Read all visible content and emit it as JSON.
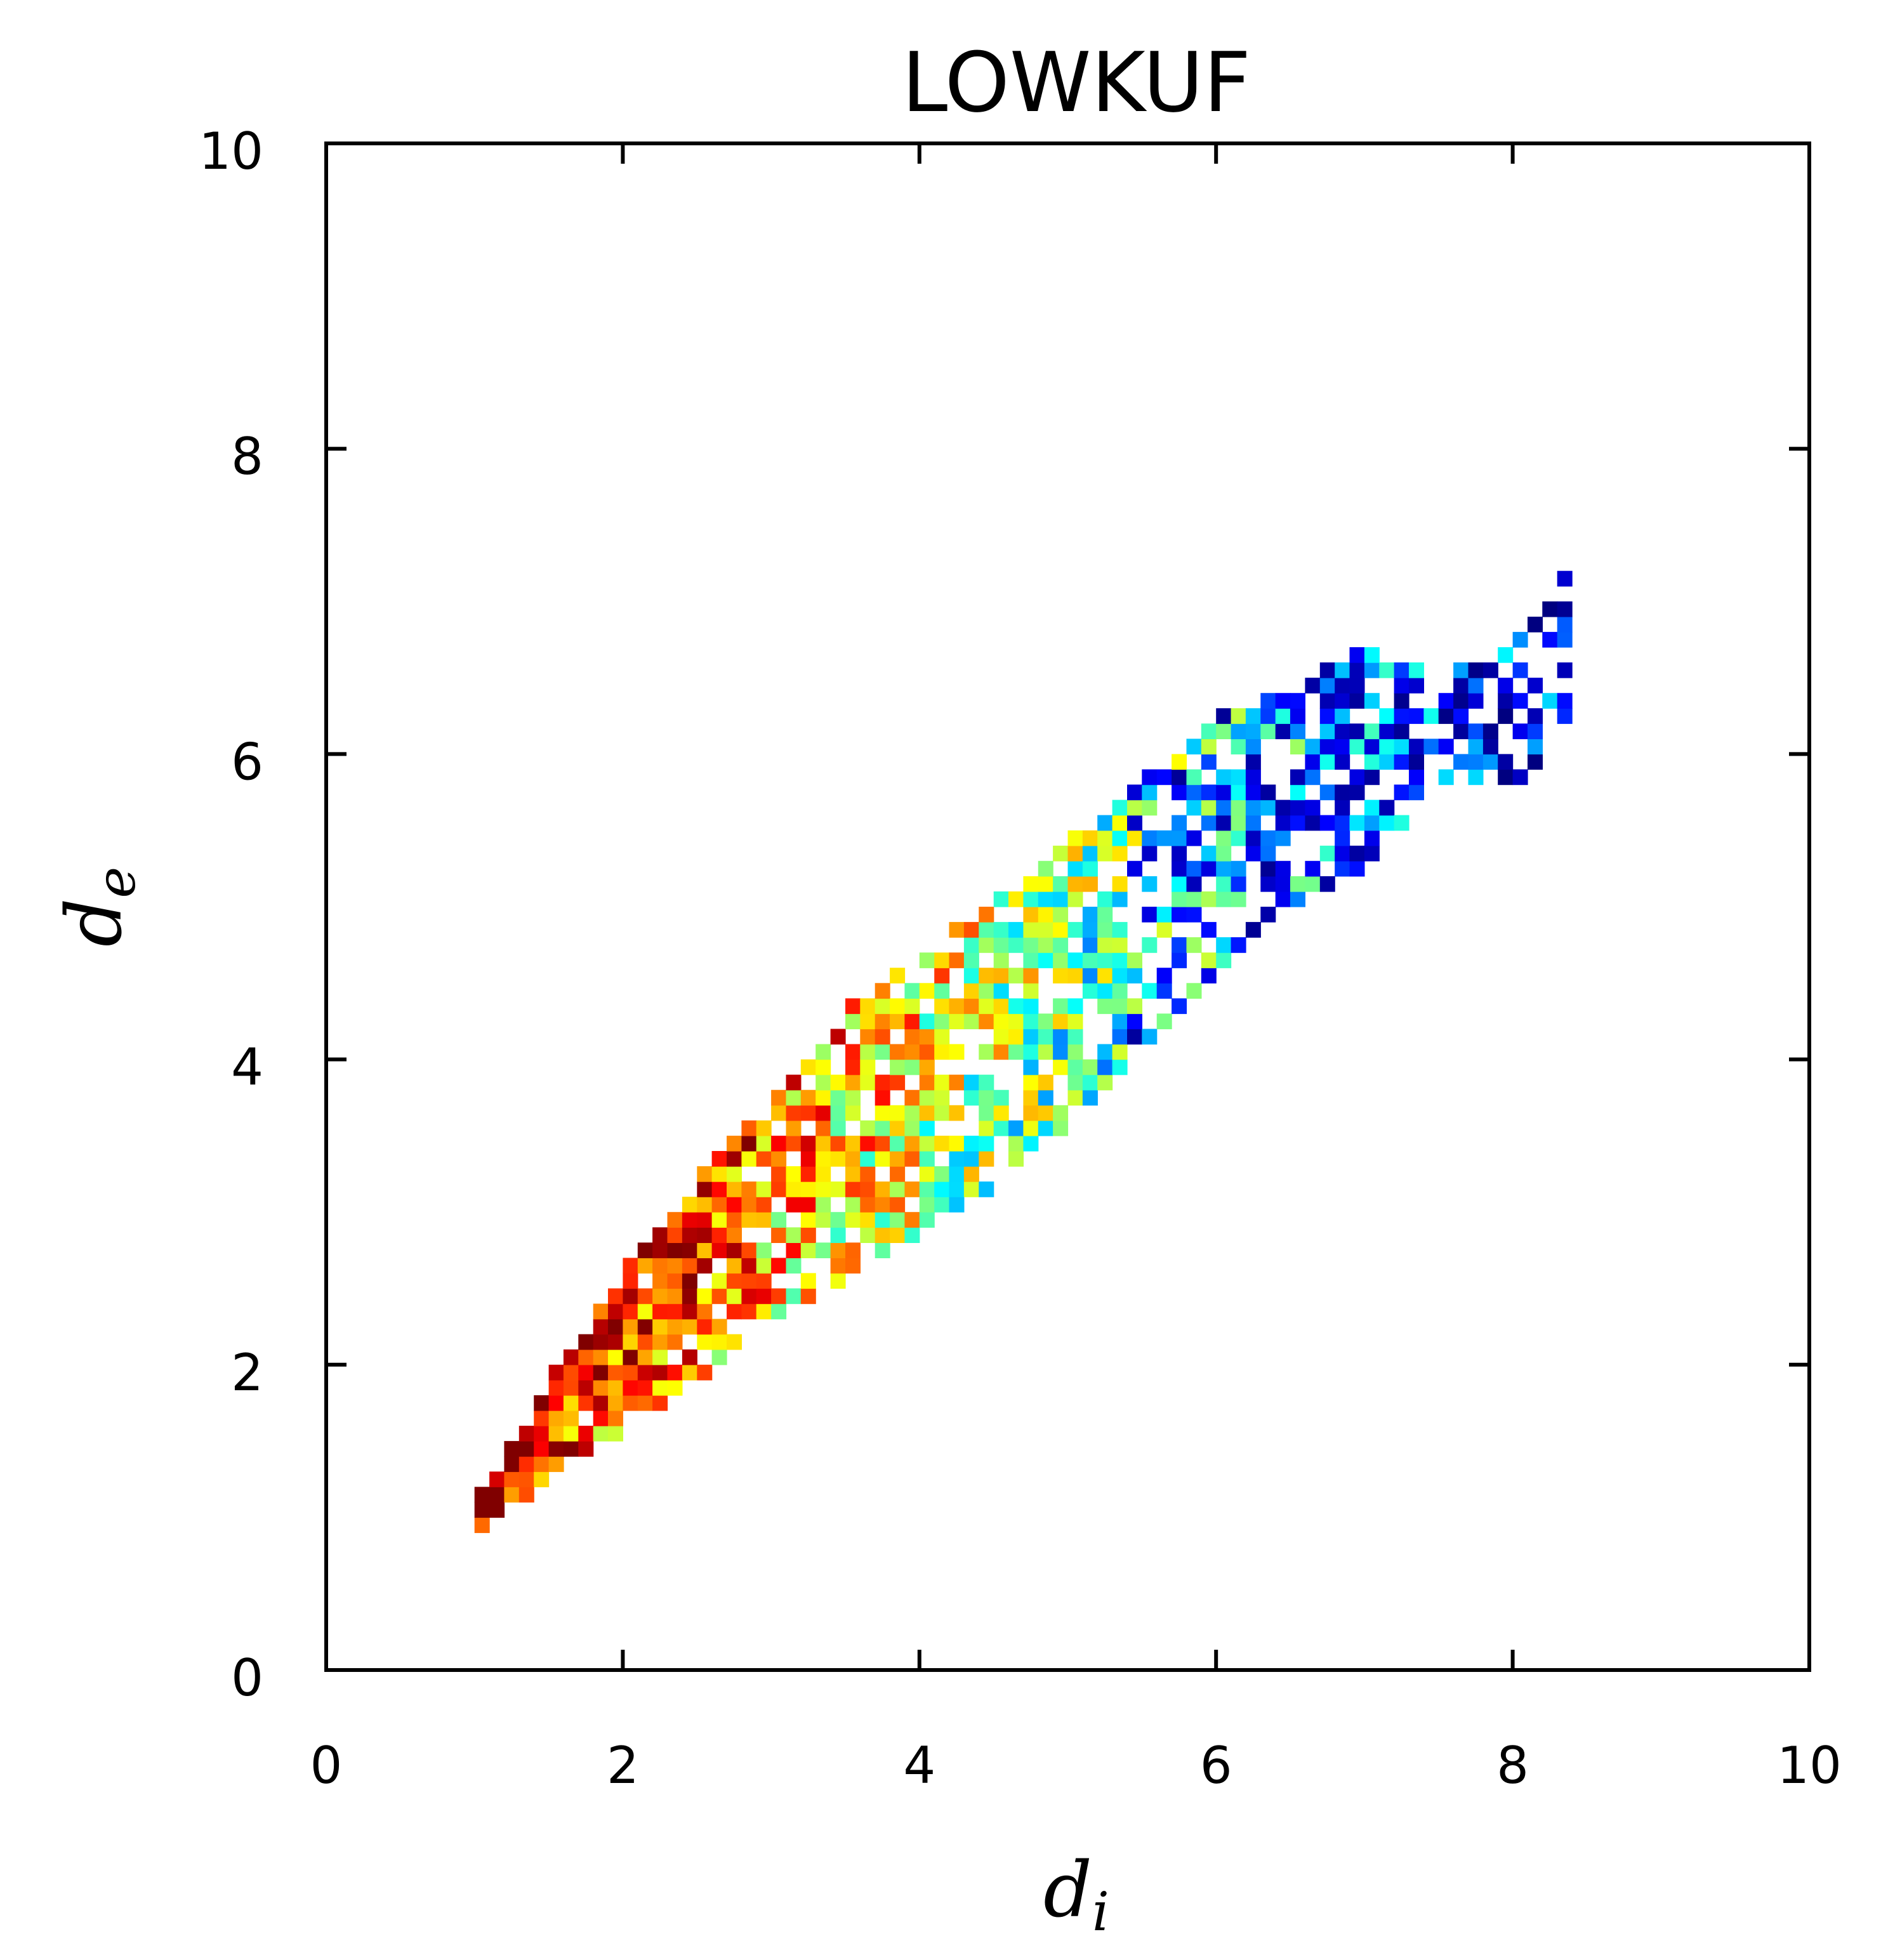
{
  "chart_data": {
    "type": "heatmap",
    "title": "LOWKUF",
    "xlabel": "d",
    "xlabel_sub": "i",
    "ylabel": "d",
    "ylabel_sub": "e",
    "xlim": [
      0,
      10
    ],
    "ylim": [
      0,
      10
    ],
    "x_ticks": [
      "0",
      "2",
      "4",
      "6",
      "8",
      "10"
    ],
    "y_ticks": [
      "0",
      "2",
      "4",
      "6",
      "8",
      "10"
    ],
    "grid": false,
    "colormap": "jet",
    "bin_size": 0.1,
    "density_description": "2D histogram of d_e versus d_i; occupied band runs from about (1.0, 1.0) to (8.3, 7.0), highest density near the lower-left end and along the upper edge of the band, sparse dark-blue bins toward the upper-right",
    "band": [
      {
        "x": 1.0,
        "lower": 0.9,
        "upper": 1.1
      },
      {
        "x": 1.5,
        "lower": 1.3,
        "upper": 1.9
      },
      {
        "x": 2.0,
        "lower": 1.6,
        "upper": 2.6
      },
      {
        "x": 2.5,
        "lower": 1.9,
        "upper": 3.2
      },
      {
        "x": 3.0,
        "lower": 2.3,
        "upper": 3.7
      },
      {
        "x": 3.5,
        "lower": 2.6,
        "upper": 4.3
      },
      {
        "x": 4.0,
        "lower": 2.9,
        "upper": 4.7
      },
      {
        "x": 4.5,
        "lower": 3.2,
        "upper": 5.0
      },
      {
        "x": 5.0,
        "lower": 3.6,
        "upper": 5.4
      },
      {
        "x": 5.5,
        "lower": 4.1,
        "upper": 5.8
      },
      {
        "x": 6.0,
        "lower": 4.6,
        "upper": 6.2
      },
      {
        "x": 6.5,
        "lower": 5.0,
        "upper": 6.4
      },
      {
        "x": 7.0,
        "lower": 5.3,
        "upper": 6.7
      },
      {
        "x": 7.5,
        "lower": 5.8,
        "upper": 6.5
      },
      {
        "x": 8.0,
        "lower": 5.8,
        "upper": 6.7
      },
      {
        "x": 8.3,
        "lower": 6.2,
        "upper": 7.1
      }
    ],
    "colors": {
      "low": "#00007f",
      "mid": "#7fff7f",
      "high": "#bf0000"
    }
  }
}
